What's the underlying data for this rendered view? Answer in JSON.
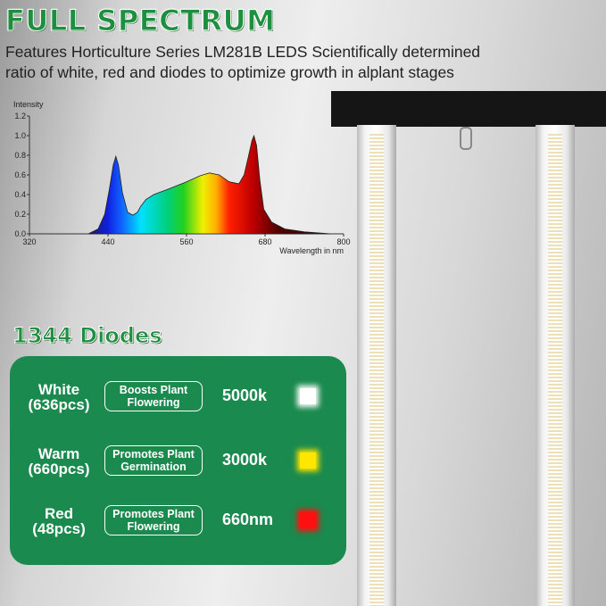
{
  "header": {
    "title": "FULL SPECTRUM",
    "subtitle_line1": "Features Horticulture Series LM281B LEDS Scientifically determined",
    "subtitle_line2": "ratio of white, red and diodes to optimize growth in alplant stages"
  },
  "chart_data": {
    "type": "area",
    "ylabel": "Intensity",
    "xlabel": "Wavelength in nm",
    "xlim": [
      320,
      800
    ],
    "ylim": [
      0,
      1.2
    ],
    "x_ticks": [
      "320",
      "440",
      "560",
      "680",
      "800"
    ],
    "y_ticks": [
      "0.0",
      "0.2",
      "0.4",
      "0.6",
      "0.8",
      "1.0",
      "1.2"
    ],
    "grid": false,
    "fill": "visible-spectrum gradient",
    "x": [
      410,
      425,
      435,
      442,
      448,
      452,
      456,
      462,
      470,
      478,
      485,
      490,
      498,
      510,
      530,
      560,
      580,
      595,
      610,
      625,
      640,
      648,
      655,
      660,
      663,
      667,
      672,
      678,
      690,
      710,
      740,
      770,
      780
    ],
    "y": [
      0,
      0.05,
      0.2,
      0.45,
      0.7,
      0.79,
      0.7,
      0.42,
      0.22,
      0.19,
      0.22,
      0.28,
      0.35,
      0.4,
      0.45,
      0.53,
      0.59,
      0.62,
      0.6,
      0.53,
      0.51,
      0.6,
      0.8,
      0.95,
      1.0,
      0.9,
      0.55,
      0.25,
      0.12,
      0.05,
      0.02,
      0.005,
      0
    ]
  },
  "diodes": {
    "title": "1344 Diodes",
    "rows": [
      {
        "name1": "White",
        "name2": "(636pcs)",
        "desc1": "Boosts Plant",
        "desc2": "Flowering",
        "value": "5000k",
        "color": "#ffffff"
      },
      {
        "name1": "Warm",
        "name2": "(660pcs)",
        "desc1": "Promotes Plant",
        "desc2": "Germination",
        "value": "3000k",
        "color": "#ffe600"
      },
      {
        "name1": "Red",
        "name2": "(48pcs)",
        "desc1": "Promotes Plant",
        "desc2": "Flowering",
        "value": "660nm",
        "color": "#ff1010"
      }
    ]
  }
}
